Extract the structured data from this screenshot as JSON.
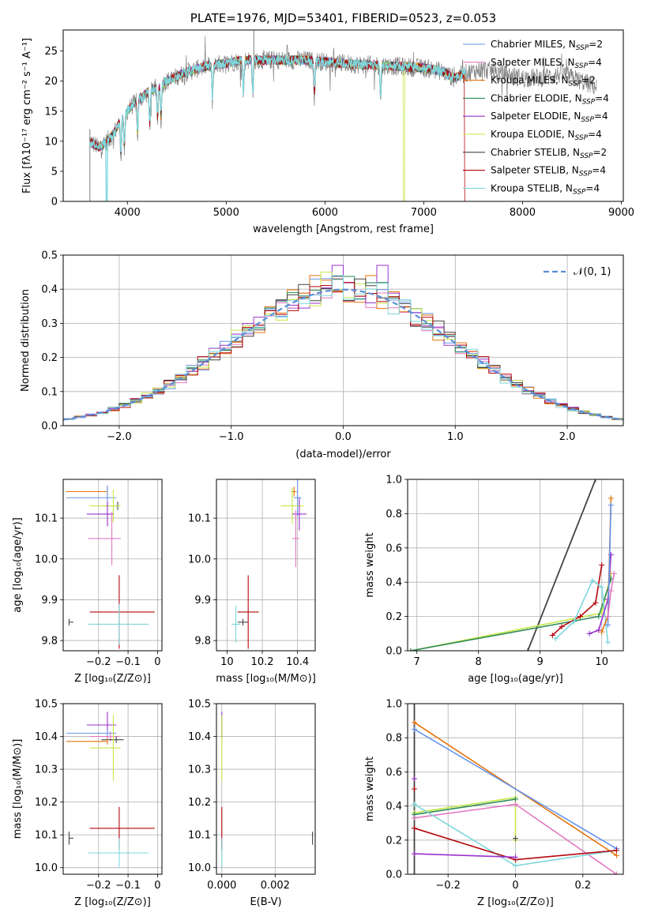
{
  "colors": {
    "chabrier_miles": "#6495ED",
    "salpeter_miles": "#E377C2",
    "kroupa_miles": "#E6730A",
    "chabrier_elodie": "#2E8B57",
    "salpeter_elodie": "#9932CC",
    "kroupa_elodie": "#C5E84A",
    "chabrier_stelib": "#444444",
    "salpeter_stelib": "#B5070D",
    "kroupa_stelib": "#7FD6DB",
    "gauss": "#5B8DD9"
  },
  "chart_data": [
    {
      "id": "spectrum",
      "type": "line",
      "title": "PLATE=1976, MJD=53401, FIBERID=0523, z=0.053",
      "xlabel": "wavelength [Angstrom, rest frame]",
      "ylabel": "Flux [fλ10⁻¹⁷ erg cm⁻² s⁻¹ A⁻¹]",
      "xlim": [
        3350,
        9020
      ],
      "ylim": [
        0,
        28.5
      ],
      "xticks": [
        4000,
        5000,
        6000,
        7000,
        8000,
        9000
      ],
      "yticks": [
        0,
        5,
        10,
        15,
        20,
        25
      ],
      "legend_position": "upper-right",
      "legend": [
        {
          "label": "Chabrier MILES, N",
          "sub": "SSP",
          "suffix": "=2",
          "color": "chabrier_miles"
        },
        {
          "label": "Salpeter MILES, N",
          "sub": "SSP",
          "suffix": "=4",
          "color": "salpeter_miles"
        },
        {
          "label": "Kroupa MILES, N",
          "sub": "SSP",
          "suffix": "=2",
          "color": "kroupa_miles"
        },
        {
          "label": "Chabrier ELODIE, N",
          "sub": "SSP",
          "suffix": "=4",
          "color": "chabrier_elodie"
        },
        {
          "label": "Salpeter ELODIE, N",
          "sub": "SSP",
          "suffix": "=4",
          "color": "salpeter_elodie"
        },
        {
          "label": "Kroupa ELODIE, N",
          "sub": "SSP",
          "suffix": "=4",
          "color": "kroupa_elodie"
        },
        {
          "label": "Chabrier STELIB, N",
          "sub": "SSP",
          "suffix": "=2",
          "color": "chabrier_stelib"
        },
        {
          "label": "Salpeter STELIB, N",
          "sub": "SSP",
          "suffix": "=4",
          "color": "salpeter_stelib"
        },
        {
          "label": "Kroupa STELIB, N",
          "sub": "SSP",
          "suffix": "=4",
          "color": "kroupa_stelib"
        }
      ],
      "continuum": [
        [
          3620,
          10
        ],
        [
          3700,
          9
        ],
        [
          3760,
          9.5
        ],
        [
          3850,
          11
        ],
        [
          3950,
          14
        ],
        [
          4050,
          16
        ],
        [
          4200,
          18
        ],
        [
          4400,
          20
        ],
        [
          4600,
          21.5
        ],
        [
          4800,
          22.5
        ],
        [
          5000,
          23
        ],
        [
          5200,
          23.5
        ],
        [
          5500,
          23.5
        ],
        [
          5800,
          23.5
        ],
        [
          6000,
          23.2
        ],
        [
          6300,
          22.8
        ],
        [
          6600,
          22.6
        ],
        [
          6900,
          22.3
        ],
        [
          7100,
          22
        ],
        [
          7200,
          21.5
        ],
        [
          7300,
          20.5
        ],
        [
          7400,
          21.2
        ],
        [
          7600,
          22
        ],
        [
          7800,
          21.2
        ],
        [
          8000,
          20.5
        ],
        [
          8200,
          20.6
        ],
        [
          8400,
          21.2
        ],
        [
          8600,
          20
        ],
        [
          8750,
          19
        ]
      ],
      "model_range_angstrom": [
        3620,
        7420
      ],
      "absorption_lines_angstrom": [
        3934,
        3969,
        4102,
        4226,
        4305,
        4340,
        4861,
        5175,
        5270,
        5893,
        6563
      ],
      "dropouts": [
        {
          "x": 3790,
          "series": "kroupa_stelib"
        },
        {
          "x": 6800,
          "series": "kroupa_elodie"
        },
        {
          "x": 7420,
          "series": "salpeter_stelib"
        }
      ]
    },
    {
      "id": "residuals",
      "type": "histogram",
      "xlabel": "(data-model)/error",
      "ylabel": "Normed distribution",
      "xlim": [
        -2.5,
        2.5
      ],
      "ylim": [
        0,
        0.5
      ],
      "xticks": [
        -2,
        -1,
        0,
        1,
        2
      ],
      "yticks": [
        0.0,
        0.1,
        0.2,
        0.3,
        0.4,
        0.5
      ],
      "bin_width": 0.1,
      "legend_position": "upper-right",
      "legend": [
        {
          "label": "𝒩(0, 1)",
          "style": "dashed",
          "color": "gauss"
        }
      ],
      "peaks": [
        0.43,
        0.47,
        0.44,
        0.42,
        0.47,
        0.45,
        0.43,
        0.42,
        0.44
      ]
    },
    {
      "id": "age_vs_Z",
      "type": "errorbar",
      "xlabel": "Z [log₁₀(Z/Z⊙)]",
      "ylabel": "age  [log₁₀(age/yr)]",
      "xlim": [
        -0.32,
        0.015
      ],
      "ylim": [
        9.775,
        10.195
      ],
      "xticks": [
        -0.2,
        -0.1,
        0.0
      ],
      "yticks": [
        9.8,
        9.9,
        10.0,
        10.1
      ],
      "points": [
        {
          "series": "kroupa_miles",
          "x": -0.17,
          "y": 10.165,
          "xerr": [
            0.14,
            0.0
          ],
          "yerr": 0.015
        },
        {
          "series": "chabrier_miles",
          "x": -0.17,
          "y": 10.15,
          "xerr": [
            0.14,
            0.03
          ],
          "yerr": 0.03
        },
        {
          "series": "chabrier_stelib",
          "x": -0.135,
          "y": 10.13,
          "xerr": [
            0.05,
            0.0
          ],
          "yerr": 0.01
        },
        {
          "series": "kroupa_elodie",
          "x": -0.15,
          "y": 10.13,
          "xerr": [
            0.08,
            0.025
          ],
          "yerr": 0.04
        },
        {
          "series": "salpeter_elodie",
          "x": -0.17,
          "y": 10.11,
          "xerr": [
            0.07,
            0.02
          ],
          "yerr": 0.03
        },
        {
          "series": "salpeter_miles",
          "x": -0.155,
          "y": 10.05,
          "xerr": [
            0.08,
            0.03
          ],
          "yerr": 0.065
        },
        {
          "series": "salpeter_stelib",
          "x": -0.13,
          "y": 9.87,
          "xerr": [
            0.1,
            0.12
          ],
          "yerr": 0.09
        },
        {
          "series": "kroupa_stelib",
          "x": -0.13,
          "y": 9.84,
          "xerr": [
            0.105,
            0.1
          ],
          "yerr": 0.05
        },
        {
          "series": "chabrier_stelib",
          "x": -0.3,
          "y": 9.845,
          "xerr": [
            0.0,
            0.015
          ],
          "yerr": 0.008
        }
      ]
    },
    {
      "id": "age_vs_mass",
      "type": "errorbar",
      "xlabel": "mass [log₁₀(M/M⊙)]",
      "ylabel": "",
      "xlim": [
        9.94,
        10.5
      ],
      "ylim": [
        9.775,
        10.195
      ],
      "xticks": [
        10.0,
        10.2,
        10.4
      ],
      "yticks": [
        9.8,
        9.9,
        10.0,
        10.1
      ],
      "points": [
        {
          "series": "kroupa_miles",
          "x": 10.38,
          "y": 10.165,
          "xerr": 0.015,
          "yerr": 0.012
        },
        {
          "series": "chabrier_miles",
          "x": 10.4,
          "y": 10.15,
          "xerr": 0.02,
          "yerr": 0.045
        },
        {
          "series": "kroupa_elodie",
          "x": 10.37,
          "y": 10.13,
          "xerr": 0.065,
          "yerr": 0.045
        },
        {
          "series": "salpeter_elodie",
          "x": 10.41,
          "y": 10.11,
          "xerr": 0.04,
          "yerr": 0.04
        },
        {
          "series": "salpeter_miles",
          "x": 10.39,
          "y": 10.05,
          "xerr": 0.02,
          "yerr": 0.07
        },
        {
          "series": "salpeter_stelib",
          "x": 10.12,
          "y": 9.87,
          "xerr": 0.06,
          "yerr": 0.09
        },
        {
          "series": "kroupa_stelib",
          "x": 10.05,
          "y": 9.84,
          "xerr": 0.025,
          "yerr": 0.045
        },
        {
          "series": "chabrier_stelib",
          "x": 10.09,
          "y": 9.845,
          "xerr": 0.03,
          "yerr": 0.008
        }
      ]
    },
    {
      "id": "massweight_vs_age",
      "type": "line",
      "xlabel": "age  [log₁₀(age/yr)]",
      "ylabel": "mass weight",
      "xlim": [
        6.85,
        10.35
      ],
      "ylim": [
        0,
        1
      ],
      "xticks": [
        7,
        8,
        9,
        10
      ],
      "yticks": [
        0.0,
        0.2,
        0.4,
        0.6,
        0.8,
        1.0
      ],
      "series": [
        {
          "series": "chabrier_stelib",
          "points": [
            [
              8.8,
              0.0
            ],
            [
              9.9,
              1.0
            ]
          ]
        },
        {
          "series": "kroupa_elodie",
          "points": [
            [
              6.9,
              0.0
            ],
            [
              10.0,
              0.22
            ],
            [
              10.15,
              0.45
            ]
          ]
        },
        {
          "series": "chabrier_elodie",
          "points": [
            [
              6.9,
              0.0
            ],
            [
              9.95,
              0.2
            ],
            [
              10.15,
              0.42
            ]
          ]
        },
        {
          "series": "salpeter_stelib",
          "points": [
            [
              9.2,
              0.09
            ],
            [
              9.35,
              0.14
            ],
            [
              9.65,
              0.2
            ],
            [
              9.9,
              0.28
            ],
            [
              10.0,
              0.5
            ]
          ]
        },
        {
          "series": "kroupa_stelib",
          "points": [
            [
              9.25,
              0.07
            ],
            [
              9.55,
              0.17
            ],
            [
              9.85,
              0.41
            ],
            [
              10.0,
              0.37
            ],
            [
              10.1,
              0.05
            ]
          ]
        },
        {
          "series": "salpeter_elodie",
          "points": [
            [
              9.8,
              0.1
            ],
            [
              9.95,
              0.12
            ],
            [
              10.1,
              0.3
            ],
            [
              10.15,
              0.56
            ]
          ]
        },
        {
          "series": "kroupa_miles",
          "points": [
            [
              10.0,
              0.11
            ],
            [
              10.1,
              0.2
            ],
            [
              10.15,
              0.89
            ]
          ]
        },
        {
          "series": "chabrier_miles",
          "points": [
            [
              10.1,
              0.15
            ],
            [
              10.15,
              0.85
            ]
          ]
        },
        {
          "series": "salpeter_miles",
          "points": [
            [
              10.1,
              0.2
            ],
            [
              10.15,
              0.35
            ],
            [
              10.2,
              0.45
            ]
          ]
        }
      ]
    },
    {
      "id": "mass_vs_Z",
      "type": "errorbar",
      "xlabel": "Z [log₁₀(Z/Z⊙)]",
      "ylabel": "mass [log₁₀(M/M⊙)]",
      "xlim": [
        -0.32,
        0.015
      ],
      "ylim": [
        9.98,
        10.5
      ],
      "xticks": [
        -0.2,
        -0.1,
        0.0
      ],
      "yticks": [
        10.0,
        10.1,
        10.2,
        10.3,
        10.4,
        10.5
      ],
      "points": [
        {
          "series": "salpeter_elodie",
          "x": -0.17,
          "y": 10.435,
          "xerr": [
            0.07,
            0.03
          ],
          "yerr": 0.04
        },
        {
          "series": "chabrier_miles",
          "x": -0.17,
          "y": 10.41,
          "xerr": [
            0.14,
            0.03
          ],
          "yerr": 0.01
        },
        {
          "series": "salpeter_miles",
          "x": -0.16,
          "y": 10.4,
          "xerr": [
            0.07,
            0.03
          ],
          "yerr": 0.015
        },
        {
          "series": "chabrier_stelib",
          "x": -0.14,
          "y": 10.39,
          "xerr": [
            0.05,
            0.025
          ],
          "yerr": 0.01
        },
        {
          "series": "kroupa_miles",
          "x": -0.17,
          "y": 10.385,
          "xerr": [
            0.14,
            0.0
          ],
          "yerr": 0.01
        },
        {
          "series": "kroupa_elodie",
          "x": -0.15,
          "y": 10.365,
          "xerr": [
            0.08,
            0.025
          ],
          "yerr": 0.1
        },
        {
          "series": "salpeter_stelib",
          "x": -0.13,
          "y": 10.12,
          "xerr": [
            0.1,
            0.12
          ],
          "yerr": 0.065
        },
        {
          "series": "kroupa_stelib",
          "x": -0.13,
          "y": 10.045,
          "xerr": [
            0.105,
            0.1
          ],
          "yerr": 0.045
        },
        {
          "series": "chabrier_stelib",
          "x": -0.3,
          "y": 10.09,
          "xerr": [
            0.0,
            0.015
          ],
          "yerr": 0.02
        }
      ]
    },
    {
      "id": "mass_vs_ebv",
      "type": "errorbar",
      "xlabel": "E(B-V)",
      "ylabel": "",
      "xlim": [
        -0.0002,
        0.0035
      ],
      "ylim": [
        9.98,
        10.5
      ],
      "xticks": [
        0.0,
        0.002
      ],
      "xtick_labels": [
        "0.000",
        "0.002"
      ],
      "yticks": [
        10.0,
        10.1,
        10.2,
        10.3,
        10.4,
        10.5
      ],
      "points": [
        {
          "series": "salpeter_elodie",
          "x": 0.0,
          "y": 10.435,
          "xerr": 0,
          "yerr": 0.04
        },
        {
          "series": "kroupa_elodie",
          "x": 0.0,
          "y": 10.365,
          "xerr": 0,
          "yerr": 0.1
        },
        {
          "series": "salpeter_stelib",
          "x": 0.0,
          "y": 10.12,
          "xerr": 0,
          "yerr": 0.065
        },
        {
          "series": "kroupa_stelib",
          "x": 0.0,
          "y": 10.045,
          "xerr": 0,
          "yerr": 0.045
        },
        {
          "series": "chabrier_stelib",
          "x": 0.0034,
          "y": 10.09,
          "xerr": 0,
          "yerr": 0.02
        }
      ]
    },
    {
      "id": "massweight_vs_Z",
      "type": "line",
      "xlabel": "Z [log₁₀(Z/Z⊙)]",
      "ylabel": "mass weight",
      "xlim": [
        -0.32,
        0.32
      ],
      "ylim": [
        0,
        1
      ],
      "xticks": [
        -0.2,
        0.0,
        0.2
      ],
      "yticks": [
        0.0,
        0.2,
        0.4,
        0.6,
        0.8,
        1.0
      ],
      "series": [
        {
          "series": "chabrier_stelib",
          "points": [
            [
              -0.3,
              0.0
            ],
            [
              -0.3,
              1.0
            ]
          ]
        },
        {
          "series": "kroupa_miles",
          "points": [
            [
              -0.3,
              0.89
            ],
            [
              0.3,
              0.11
            ]
          ]
        },
        {
          "series": "chabrier_miles",
          "points": [
            [
              -0.3,
              0.85
            ],
            [
              0.3,
              0.15
            ]
          ]
        },
        {
          "series": "kroupa_elodie",
          "points": [
            [
              -0.3,
              0.36
            ],
            [
              0.0,
              0.45
            ],
            [
              0.0,
              0.2
            ]
          ]
        },
        {
          "series": "chabrier_elodie",
          "points": [
            [
              -0.3,
              0.35
            ],
            [
              0.0,
              0.44
            ]
          ]
        },
        {
          "series": "salpeter_miles",
          "points": [
            [
              -0.3,
              0.33
            ],
            [
              0.0,
              0.41
            ],
            [
              0.3,
              0.0
            ]
          ]
        },
        {
          "series": "kroupa_stelib",
          "points": [
            [
              -0.3,
              0.41
            ],
            [
              0.0,
              0.05
            ],
            [
              0.3,
              0.14
            ]
          ]
        },
        {
          "series": "salpeter_stelib",
          "points": [
            [
              -0.3,
              0.27
            ],
            [
              0.0,
              0.085
            ],
            [
              0.3,
              0.14
            ]
          ]
        },
        {
          "series": "salpeter_elodie",
          "points": [
            [
              -0.3,
              0.12
            ],
            [
              0.0,
              0.1
            ]
          ]
        }
      ],
      "markers": [
        {
          "series": "salpeter_stelib",
          "x": -0.3,
          "y": 0.5
        },
        {
          "series": "salpeter_elodie",
          "x": -0.3,
          "y": 0.56
        },
        {
          "series": "chabrier_stelib",
          "x": 0.0,
          "y": 0.21
        }
      ]
    }
  ]
}
